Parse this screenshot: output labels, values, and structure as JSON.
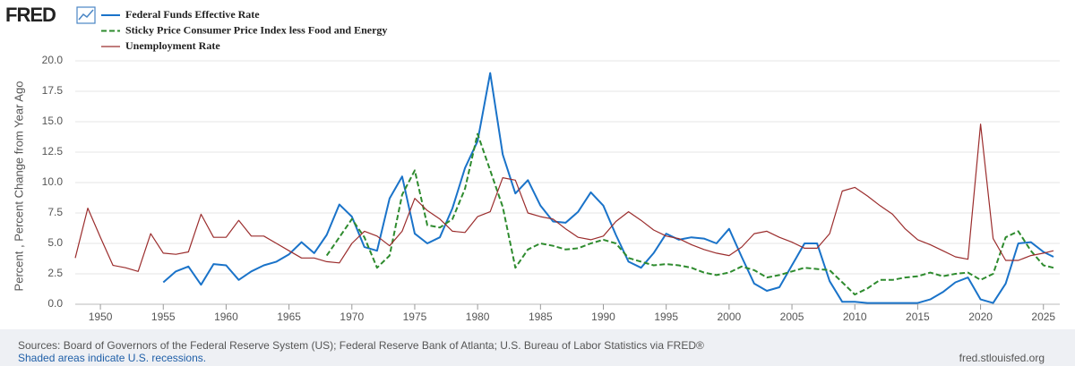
{
  "logo": "FRED",
  "chart_data": {
    "type": "line",
    "ylabel": "Percent , Percent Change from Year Ago",
    "x": [
      1948,
      1949,
      1950,
      1951,
      1952,
      1953,
      1954,
      1955,
      1956,
      1957,
      1958,
      1959,
      1960,
      1961,
      1962,
      1963,
      1964,
      1965,
      1966,
      1967,
      1968,
      1969,
      1970,
      1971,
      1972,
      1973,
      1974,
      1975,
      1976,
      1977,
      1978,
      1979,
      1980,
      1981,
      1982,
      1983,
      1984,
      1985,
      1986,
      1987,
      1988,
      1989,
      1990,
      1991,
      1992,
      1993,
      1994,
      1995,
      1996,
      1997,
      1998,
      1999,
      2000,
      2001,
      2002,
      2003,
      2004,
      2005,
      2006,
      2007,
      2008,
      2009,
      2010,
      2011,
      2012,
      2013,
      2014,
      2015,
      2016,
      2017,
      2018,
      2019,
      2020,
      2021,
      2022,
      2023,
      2024,
      2025,
      2025.8
    ],
    "series": [
      {
        "name": "Federal Funds Effective Rate",
        "color": "#1a73c9",
        "dash": "solid",
        "values": [
          null,
          null,
          null,
          null,
          null,
          null,
          null,
          1.8,
          2.7,
          3.1,
          1.6,
          3.3,
          3.2,
          2.0,
          2.7,
          3.2,
          3.5,
          4.1,
          5.1,
          4.2,
          5.7,
          8.2,
          7.2,
          4.7,
          4.4,
          8.7,
          10.5,
          5.8,
          5.0,
          5.5,
          7.9,
          11.2,
          13.4,
          19.0,
          12.3,
          9.1,
          10.2,
          8.1,
          6.8,
          6.7,
          7.6,
          9.2,
          8.1,
          5.7,
          3.5,
          3.0,
          4.2,
          5.8,
          5.3,
          5.5,
          5.4,
          5.0,
          6.2,
          3.9,
          1.7,
          1.1,
          1.4,
          3.2,
          5.0,
          5.0,
          1.9,
          0.2,
          0.2,
          0.1,
          0.1,
          0.1,
          0.1,
          0.1,
          0.4,
          1.0,
          1.8,
          2.2,
          0.4,
          0.1,
          1.7,
          5.0,
          5.1,
          4.3,
          3.9
        ]
      },
      {
        "name": "Sticky Price Consumer Price Index less Food and Energy",
        "color": "#2e8b2e",
        "dash": "dashed",
        "values": [
          null,
          null,
          null,
          null,
          null,
          null,
          null,
          null,
          null,
          null,
          null,
          null,
          null,
          null,
          null,
          null,
          null,
          null,
          null,
          null,
          4.0,
          5.5,
          7.0,
          5.5,
          3.0,
          4.0,
          9.0,
          11.0,
          6.5,
          6.3,
          7.0,
          9.5,
          14.0,
          11.0,
          8.0,
          3.0,
          4.5,
          5.0,
          4.8,
          4.5,
          4.6,
          5.0,
          5.3,
          5.0,
          3.8,
          3.5,
          3.2,
          3.3,
          3.2,
          3.0,
          2.6,
          2.4,
          2.6,
          3.1,
          2.8,
          2.2,
          2.4,
          2.7,
          3.0,
          2.9,
          2.8,
          1.8,
          0.8,
          1.3,
          2.0,
          2.0,
          2.2,
          2.3,
          2.6,
          2.3,
          2.5,
          2.6,
          2.0,
          2.5,
          5.5,
          6.0,
          4.4,
          3.2,
          3.0
        ]
      },
      {
        "name": "Unemployment Rate",
        "color": "#9b2d2d",
        "dash": "solid",
        "values": [
          3.8,
          7.9,
          5.5,
          3.2,
          3.0,
          2.7,
          5.8,
          4.2,
          4.1,
          4.3,
          7.4,
          5.5,
          5.5,
          6.9,
          5.6,
          5.6,
          5.0,
          4.4,
          3.8,
          3.8,
          3.5,
          3.4,
          5.0,
          6.0,
          5.6,
          4.8,
          6.0,
          8.7,
          7.7,
          7.0,
          6.0,
          5.9,
          7.2,
          7.6,
          10.4,
          10.2,
          7.5,
          7.2,
          7.0,
          6.2,
          5.5,
          5.3,
          5.6,
          6.8,
          7.6,
          6.9,
          6.1,
          5.6,
          5.4,
          4.9,
          4.5,
          4.2,
          4.0,
          4.7,
          5.8,
          6.0,
          5.5,
          5.1,
          4.6,
          4.6,
          5.8,
          9.3,
          9.6,
          8.9,
          8.1,
          7.4,
          6.2,
          5.3,
          4.9,
          4.4,
          3.9,
          3.7,
          14.8,
          5.4,
          3.6,
          3.6,
          4.0,
          4.2,
          4.4
        ]
      }
    ],
    "xlim": [
      1948,
      2026.3
    ],
    "xticks": [
      1950,
      1955,
      1960,
      1965,
      1970,
      1975,
      1980,
      1985,
      1990,
      1995,
      2000,
      2005,
      2010,
      2015,
      2020,
      2025
    ],
    "ylim": [
      0,
      20
    ],
    "yticks": [
      {
        "value": 0,
        "label": "0.0"
      },
      {
        "value": 2.5,
        "label": "2.5"
      },
      {
        "value": 5,
        "label": "5.0"
      },
      {
        "value": 7.5,
        "label": "7.5"
      },
      {
        "value": 10,
        "label": "10.0"
      },
      {
        "value": 12.5,
        "label": "12.5"
      },
      {
        "value": 15,
        "label": "15.0"
      },
      {
        "value": 17.5,
        "label": "17.5"
      },
      {
        "value": 20,
        "label": "20.0"
      }
    ],
    "grid": true,
    "source": "Sources: Board of Governors of the Federal Reserve System (US); Federal Reserve Bank of Atlanta; U.S. Bureau of Labor Statistics via FRED®",
    "note": "Shaded areas indicate U.S. recessions.",
    "site": "fred.stlouisfed.org"
  }
}
